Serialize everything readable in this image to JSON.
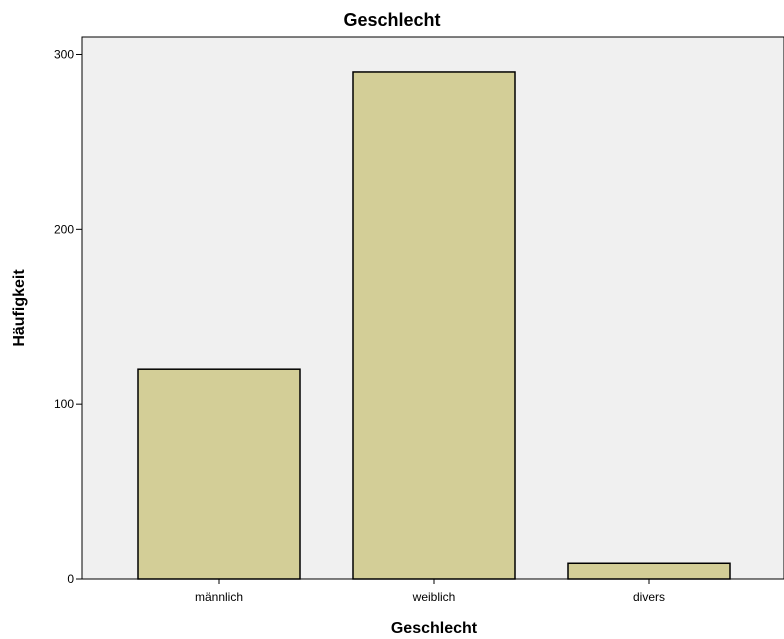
{
  "chart_data": {
    "type": "bar",
    "title": "Geschlecht",
    "xlabel": "Geschlecht",
    "ylabel": "Häufigkeit",
    "categories": [
      "männlich",
      "weiblich",
      "divers"
    ],
    "values": [
      120,
      290,
      9
    ],
    "ylim": [
      0,
      310
    ],
    "yticks": [
      0,
      100,
      200,
      300
    ],
    "grid": false,
    "legend": "none",
    "bar_color": "#D3CE97",
    "plot_background": "#F0F0F0"
  }
}
